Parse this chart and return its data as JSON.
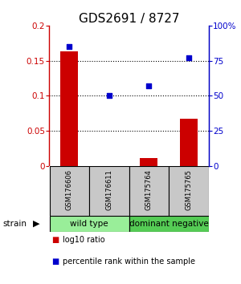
{
  "title": "GDS2691 / 8727",
  "samples": [
    "GSM176606",
    "GSM176611",
    "GSM175764",
    "GSM175765"
  ],
  "log10_ratio": [
    0.163,
    -0.008,
    0.012,
    0.068
  ],
  "percentile_rank": [
    85,
    50,
    57,
    77
  ],
  "ylim_left": [
    0,
    0.2
  ],
  "ylim_right": [
    0,
    100
  ],
  "yticks_left": [
    0,
    0.05,
    0.1,
    0.15,
    0.2
  ],
  "ytick_labels_left": [
    "0",
    "0.05",
    "0.1",
    "0.15",
    "0.2"
  ],
  "ytick_labels_right": [
    "0",
    "25",
    "50",
    "75",
    "100%"
  ],
  "hlines": [
    0.05,
    0.1,
    0.15
  ],
  "bar_color": "#cc0000",
  "dot_color": "#0000cc",
  "groups": [
    {
      "label": "wild type",
      "samples": [
        0,
        1
      ],
      "color": "#99ee99"
    },
    {
      "label": "dominant negative",
      "samples": [
        2,
        3
      ],
      "color": "#55cc55"
    }
  ],
  "sample_box_color": "#c8c8c8",
  "legend_ratio_color": "#cc0000",
  "legend_pct_color": "#0000cc",
  "legend_ratio_label": "log10 ratio",
  "legend_pct_label": "percentile rank within the sample",
  "strain_label": "strain",
  "title_fontsize": 11,
  "axis_fontsize": 7.5,
  "sample_fontsize": 6.0,
  "group_fontsize": 7.5,
  "legend_fontsize": 7.0
}
